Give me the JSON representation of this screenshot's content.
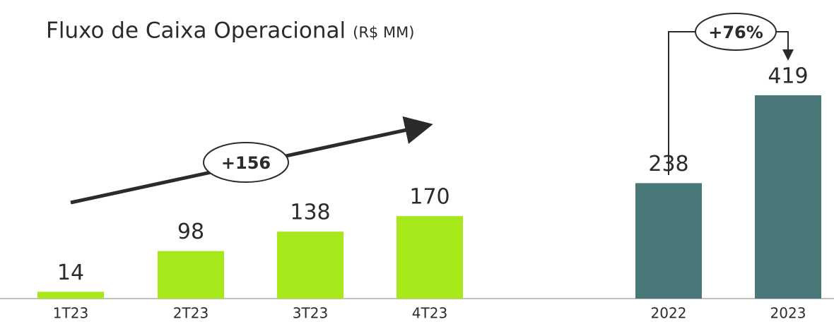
{
  "chart_data": {
    "type": "bar",
    "title": "Fluxo de Caixa Operacional",
    "subtitle": "(R$ MM)",
    "categories": [
      "1T23",
      "2T23",
      "3T23",
      "4T23",
      "2022",
      "2023"
    ],
    "values": [
      14,
      98,
      138,
      170,
      238,
      419
    ],
    "colors": [
      "#a6e81a",
      "#a6e81a",
      "#a6e81a",
      "#a6e81a",
      "#4a7878",
      "#4a7878"
    ],
    "annotations": [
      "+156",
      "+76%"
    ]
  }
}
